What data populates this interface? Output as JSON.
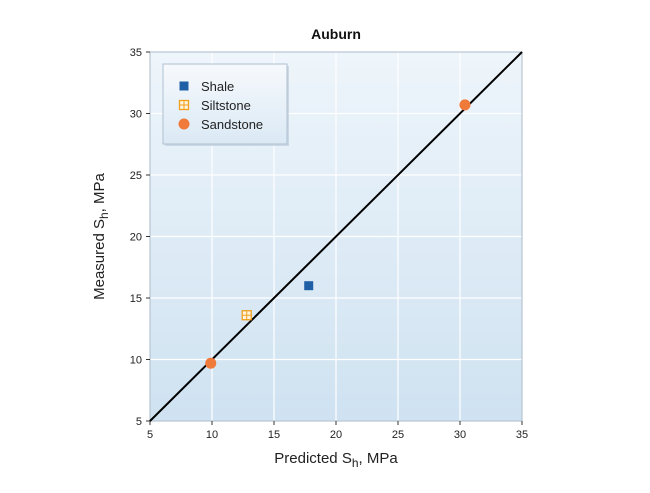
{
  "chart_data": {
    "type": "scatter",
    "title": "Auburn",
    "xlabel": {
      "main": "Predicted S",
      "sub": "h",
      "unit": ", MPa"
    },
    "ylabel": {
      "main": "Measured S",
      "sub": "h",
      "unit": ", MPa"
    },
    "xlim": [
      5,
      35
    ],
    "ylim": [
      5,
      35
    ],
    "xticks": [
      5,
      10,
      15,
      20,
      25,
      30,
      35
    ],
    "yticks": [
      5,
      10,
      15,
      20,
      25,
      30,
      35
    ],
    "grid": true,
    "legend_position": "top-left",
    "reference_line": {
      "from": [
        5,
        5
      ],
      "to": [
        35,
        35
      ],
      "color": "#000000"
    },
    "series": [
      {
        "name": "Shale",
        "marker": "square",
        "color": "#1f5fa6",
        "points": [
          [
            17.8,
            16.0
          ]
        ]
      },
      {
        "name": "Siltstone",
        "marker": "grid-square",
        "color": "#f0a020",
        "points": [
          [
            12.8,
            13.6
          ]
        ]
      },
      {
        "name": "Sandstone",
        "marker": "circle",
        "color": "#f07a3a",
        "points": [
          [
            9.9,
            9.7
          ],
          [
            30.4,
            30.7
          ]
        ]
      }
    ]
  }
}
